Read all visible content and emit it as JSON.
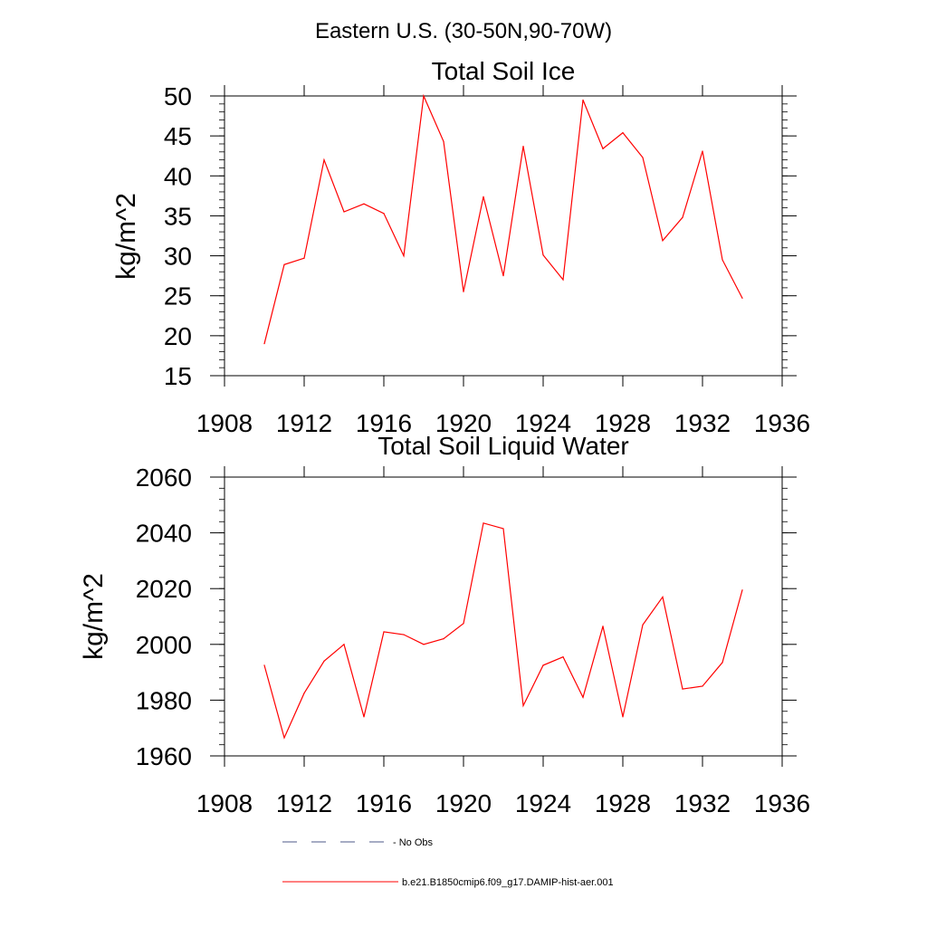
{
  "figure": {
    "suptitle": "Eastern U.S. (30-50N,90-70W)"
  },
  "colors": {
    "series": "#ff0000",
    "no_obs": "#4d5a8a",
    "axis": "#000000"
  },
  "legend": {
    "no_obs_label": "- No Obs",
    "model_label": "b.e21.B1850cmip6.f09_g17.DAMIP-hist-aer.001"
  },
  "chart_data": [
    {
      "type": "line",
      "title": "Total Soil Ice",
      "ylabel": "kg/m^2",
      "xlim": [
        1908,
        1936
      ],
      "ylim": [
        15,
        50
      ],
      "xticks": [
        1908,
        1912,
        1916,
        1920,
        1924,
        1928,
        1932,
        1936
      ],
      "yticks": [
        15,
        20,
        25,
        30,
        35,
        40,
        45,
        50
      ],
      "y_minor_step": 1,
      "x": [
        1910,
        1911,
        1912,
        1913,
        1914,
        1915,
        1916,
        1917,
        1918,
        1919,
        1920,
        1921,
        1922,
        1923,
        1924,
        1925,
        1926,
        1927,
        1928,
        1929,
        1930,
        1931,
        1932,
        1933,
        1934
      ],
      "series": [
        {
          "values": [
            19.0,
            28.9,
            29.7,
            42.0,
            35.5,
            36.5,
            35.3,
            30.0,
            50.0,
            44.3,
            25.5,
            37.4,
            27.5,
            43.7,
            30.1,
            27.0,
            49.5,
            43.4,
            45.4,
            42.3,
            31.9,
            34.8,
            43.1,
            29.5,
            24.7
          ]
        }
      ]
    },
    {
      "type": "line",
      "title": "Total Soil Liquid Water",
      "ylabel": "kg/m^2",
      "xlim": [
        1908,
        1936
      ],
      "ylim": [
        1960,
        2060
      ],
      "xticks": [
        1908,
        1912,
        1916,
        1920,
        1924,
        1928,
        1932,
        1936
      ],
      "yticks": [
        1960,
        1980,
        2000,
        2020,
        2040,
        2060
      ],
      "y_minor_step": 4,
      "x": [
        1910,
        1911,
        1912,
        1913,
        1914,
        1915,
        1916,
        1917,
        1918,
        1919,
        1920,
        1921,
        1922,
        1923,
        1924,
        1925,
        1926,
        1927,
        1928,
        1929,
        1930,
        1931,
        1932,
        1933,
        1934
      ],
      "series": [
        {
          "values": [
            1992.5,
            1966.5,
            1982.5,
            1994.0,
            2000.0,
            1974.0,
            2004.5,
            2003.5,
            2000.0,
            2002.0,
            2007.5,
            2043.5,
            2041.5,
            1978.0,
            1992.5,
            1995.5,
            1981.0,
            2006.5,
            1974.0,
            2007.0,
            2017.0,
            1984.0,
            1985.0,
            1993.5,
            2019.5
          ]
        }
      ]
    }
  ]
}
